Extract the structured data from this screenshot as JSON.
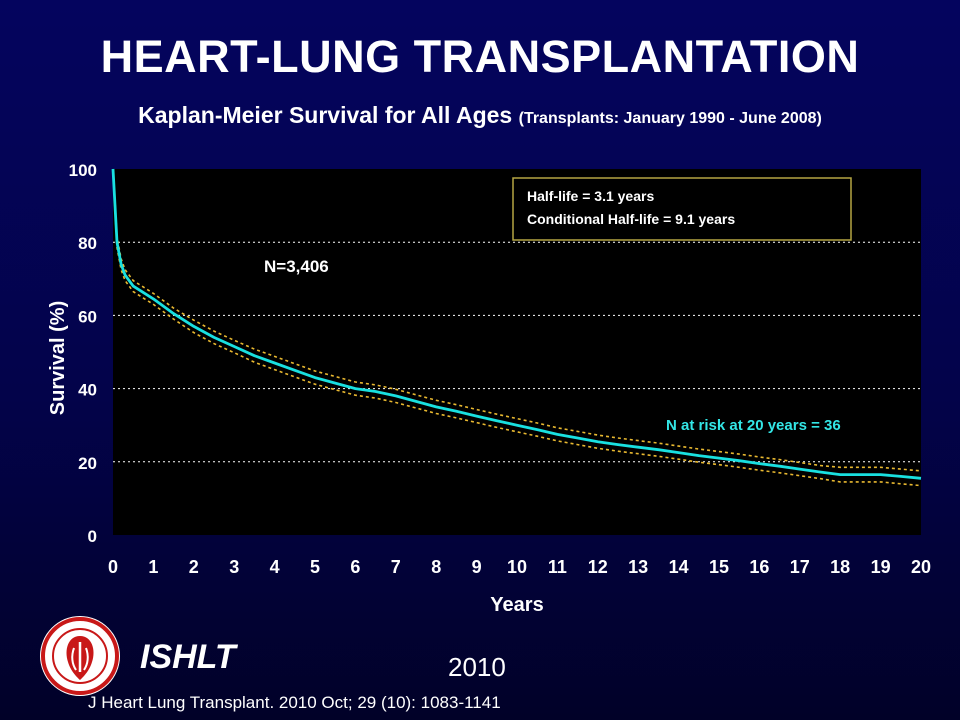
{
  "header": {
    "title": "HEART-LUNG TRANSPLANTATION",
    "subtitle_main": "Kaplan-Meier Survival for All Ages",
    "subtitle_detail": "(Transplants: January 1990 - June 2008)"
  },
  "footer": {
    "org": "ISHLT",
    "year": "2010",
    "citation": "J Heart Lung Transplant. 2010 Oct; 29 (10): 1083-1141"
  },
  "colors": {
    "background": "#03034a",
    "plot_background": "#000000",
    "survival_line": "#19e0e0",
    "confidence_band": "#e8b830",
    "grid": "#ffffff",
    "annotation_teal": "#33e6e6",
    "legend_border": "#b5a642"
  },
  "chart_data": {
    "type": "line",
    "xlabel": "Years",
    "ylabel": "Survival (%)",
    "xlim": [
      0,
      20
    ],
    "ylim": [
      0,
      100
    ],
    "x_ticks": [
      "0",
      "1",
      "2",
      "3",
      "4",
      "5",
      "6",
      "7",
      "8",
      "9",
      "10",
      "11",
      "12",
      "13",
      "14",
      "15",
      "16",
      "17",
      "18",
      "19",
      "20"
    ],
    "y_ticks": [
      "0",
      "20",
      "40",
      "60",
      "80",
      "100"
    ],
    "grid": "horizontal dotted",
    "series": [
      {
        "x": [
          0,
          0.05,
          0.1,
          0.2,
          0.3,
          0.5,
          1,
          1.5,
          2,
          2.5,
          3,
          3.5,
          4,
          4.5,
          5,
          5.5,
          6,
          6.5,
          7,
          7.5,
          8,
          8.5,
          9,
          9.5,
          10,
          10.5,
          11,
          11.5,
          12,
          12.5,
          13,
          13.5,
          14,
          14.5,
          15,
          15.5,
          16,
          16.5,
          17,
          17.5,
          18,
          18.5,
          19,
          19.5,
          20
        ],
        "y": [
          100,
          90,
          80,
          74,
          71,
          68,
          64.5,
          60.5,
          57,
          54,
          51.5,
          49,
          47,
          45,
          43,
          41.5,
          40,
          39.2,
          38,
          36.5,
          35,
          33.8,
          32.5,
          31.2,
          30,
          28.8,
          27.5,
          26.5,
          25.5,
          24.7,
          24,
          23.3,
          22.5,
          21.7,
          21,
          20.3,
          19.5,
          18.8,
          18,
          17.2,
          16.5,
          16.5,
          16.5,
          16,
          15.5
        ]
      },
      {
        "x": [
          0,
          0.05,
          0.1,
          0.2,
          0.3,
          0.5,
          1,
          1.5,
          2,
          2.5,
          3,
          3.5,
          4,
          4.5,
          5,
          5.5,
          6,
          6.5,
          7,
          7.5,
          8,
          8.5,
          9,
          9.5,
          10,
          10.5,
          11,
          11.5,
          12,
          12.5,
          13,
          13.5,
          14,
          14.5,
          15,
          15.5,
          16,
          16.5,
          17,
          17.5,
          18,
          18.5,
          19,
          19.5,
          20
        ],
        "y": [
          100,
          91.5,
          81.5,
          75.5,
          72.5,
          69.5,
          66,
          62,
          58.7,
          55.7,
          53.2,
          50.8,
          48.8,
          46.8,
          44.8,
          43.3,
          41.8,
          41,
          39.8,
          38.3,
          36.8,
          35.6,
          34.3,
          33,
          31.8,
          30.6,
          29.3,
          28.3,
          27.3,
          26.5,
          25.8,
          25.1,
          24.3,
          23.5,
          22.8,
          22.1,
          21.3,
          20.6,
          19.8,
          19,
          18.5,
          18.5,
          18.5,
          18,
          17.5
        ]
      },
      {
        "x": [
          0,
          0.05,
          0.1,
          0.2,
          0.3,
          0.5,
          1,
          1.5,
          2,
          2.5,
          3,
          3.5,
          4,
          4.5,
          5,
          5.5,
          6,
          6.5,
          7,
          7.5,
          8,
          8.5,
          9,
          9.5,
          10,
          10.5,
          11,
          11.5,
          12,
          12.5,
          13,
          13.5,
          14,
          14.5,
          15,
          15.5,
          16,
          16.5,
          17,
          17.5,
          18,
          18.5,
          19,
          19.5,
          20
        ],
        "y": [
          100,
          88.5,
          78.5,
          72.5,
          69.5,
          66.5,
          63,
          59,
          55.3,
          52.3,
          49.8,
          47.2,
          45.2,
          43.2,
          41.2,
          39.7,
          38.2,
          37.4,
          36.2,
          34.7,
          33.2,
          32,
          30.7,
          29.4,
          28.2,
          27,
          25.7,
          24.7,
          23.7,
          22.9,
          22.2,
          21.5,
          20.7,
          19.9,
          19.2,
          18.5,
          17.7,
          17,
          16.2,
          15.4,
          14.5,
          14.5,
          14.5,
          14,
          13.5
        ]
      }
    ],
    "annotations": {
      "n_label": "N=3,406",
      "at_risk": "N at risk at 20 years = 36",
      "legend_lines": [
        "Half-life = 3.1 years",
        "Conditional Half-life = 9.1 years"
      ]
    }
  }
}
